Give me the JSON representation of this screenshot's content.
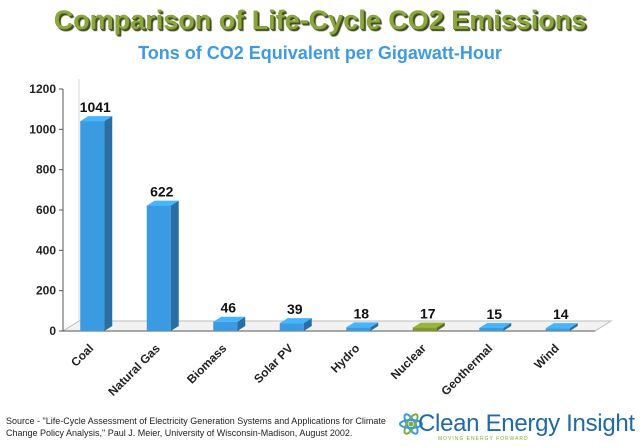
{
  "header": {
    "title": "Comparison of Life-Cycle CO2 Emissions",
    "subtitle": "Tons of CO2 Equivalent per Gigawatt-Hour"
  },
  "chart_data": {
    "type": "bar",
    "title": "Comparison of Life-Cycle CO2 Emissions",
    "subtitle": "Tons of CO2 Equivalent per Gigawatt-Hour",
    "categories": [
      "Coal",
      "Natural Gas",
      "Biomass",
      "Solar PV",
      "Hydro",
      "Nuclear",
      "Geothermal",
      "Wind"
    ],
    "values": [
      1041,
      622,
      46,
      39,
      18,
      17,
      15,
      14
    ],
    "highlight_category": "Nuclear",
    "xlabel": "",
    "ylabel": "",
    "ylim": [
      0,
      1200
    ],
    "yticks": [
      0,
      200,
      400,
      600,
      800,
      1000,
      1200
    ],
    "grid": false,
    "legend": "none",
    "style": "3d-column"
  },
  "colors": {
    "bar": "#3a9ae2",
    "bar_highlight": "#7f9a2c",
    "title": "#8aa63c",
    "subtitle": "#3d9be6"
  },
  "footer": {
    "source": "Source - \"Life-Cycle Assessment of Electricity Generation Systems and Applications for Climate Change Policy Analysis,\" Paul J. Meier, University of Wisconsin-Madison, August 2002."
  },
  "logo": {
    "name": "Clean Energy Insight",
    "tagline": "MOVING ENERGY FORWARD",
    "icon": "snowflake-atom-icon"
  }
}
